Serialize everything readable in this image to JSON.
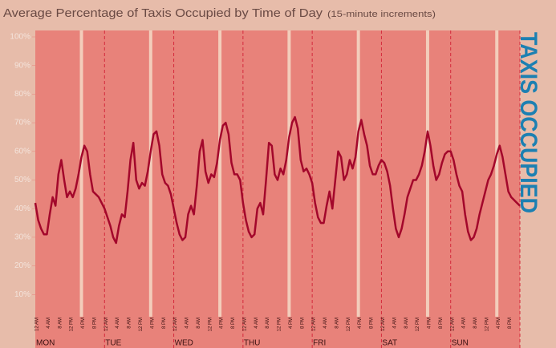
{
  "chart_data": {
    "type": "line",
    "title": "Average Percentage of Taxis Occupied by Time of Day",
    "subtitle": "(15-minute increments)",
    "side_label": "TAXIS OCCUPIED",
    "color": "#a3072b",
    "x": [
      0,
      1,
      2,
      3,
      4,
      5,
      6,
      7,
      8,
      9,
      10,
      11,
      12,
      13,
      14,
      15,
      16,
      17,
      18,
      19,
      20,
      21,
      22,
      23,
      24,
      25,
      26,
      27,
      28,
      29,
      30,
      31,
      32,
      33,
      34,
      35,
      36,
      37,
      38,
      39,
      40,
      41,
      42,
      43,
      44,
      45,
      46,
      47,
      48,
      49,
      50,
      51,
      52,
      53,
      54,
      55,
      56,
      57,
      58,
      59,
      60,
      61,
      62,
      63,
      64,
      65,
      66,
      67,
      68,
      69,
      70,
      71,
      72,
      73,
      74,
      75,
      76,
      77,
      78,
      79,
      80,
      81,
      82,
      83,
      84,
      85,
      86,
      87,
      88,
      89,
      90,
      91,
      92,
      93,
      94,
      95,
      96,
      97,
      98,
      99,
      100,
      101,
      102,
      103,
      104,
      105,
      106,
      107,
      108,
      109,
      110,
      111,
      112,
      113,
      114,
      115,
      116,
      117,
      118,
      119,
      120,
      121,
      122,
      123,
      124,
      125,
      126,
      127,
      128,
      129,
      130,
      131,
      132,
      133,
      134,
      135,
      136,
      137,
      138,
      139,
      140,
      141,
      142,
      143,
      144,
      145,
      146,
      147,
      148,
      149,
      150,
      151,
      152,
      153,
      154,
      155,
      156,
      157,
      158,
      159,
      160,
      161,
      162,
      163,
      164,
      165,
      166,
      167,
      168
    ],
    "values": [
      42,
      36,
      33,
      31,
      31,
      38,
      44,
      41,
      52,
      57,
      50,
      44,
      46,
      44,
      47,
      52,
      58,
      62,
      60,
      52,
      46,
      45,
      44,
      42,
      40,
      37,
      34,
      30,
      28,
      34,
      38,
      37,
      46,
      57,
      63,
      50,
      47,
      49,
      48,
      53,
      60,
      66,
      67,
      62,
      52,
      49,
      48,
      45,
      40,
      35,
      31,
      29,
      30,
      38,
      41,
      38,
      48,
      60,
      64,
      53,
      49,
      52,
      51,
      56,
      64,
      69,
      70,
      66,
      56,
      52,
      52,
      50,
      42,
      36,
      32,
      30,
      31,
      40,
      42,
      38,
      50,
      63,
      62,
      52,
      50,
      54,
      52,
      57,
      65,
      70,
      72,
      68,
      57,
      53,
      54,
      52,
      49,
      42,
      37,
      35,
      35,
      41,
      46,
      40,
      50,
      60,
      58,
      50,
      52,
      57,
      54,
      58,
      67,
      71,
      66,
      62,
      55,
      52,
      52,
      55,
      57,
      56,
      53,
      48,
      40,
      33,
      30,
      33,
      38,
      44,
      47,
      50,
      50,
      52,
      55,
      60,
      67,
      62,
      55,
      50,
      52,
      56,
      59,
      60,
      60,
      57,
      52,
      48,
      46,
      38,
      32,
      29,
      30,
      33,
      38,
      42,
      46,
      50,
      52,
      55,
      59,
      62,
      58,
      52,
      46,
      44,
      43,
      42,
      41
    ],
    "xlim": [
      0,
      168
    ],
    "ylim": [
      0,
      100
    ],
    "yticks": [
      {
        "value": 10,
        "label": "10%"
      },
      {
        "value": 20,
        "label": "20%"
      },
      {
        "value": 30,
        "label": "30%"
      },
      {
        "value": 40,
        "label": "40%"
      },
      {
        "value": 50,
        "label": "50%"
      },
      {
        "value": 60,
        "label": "60%"
      },
      {
        "value": 70,
        "label": "70%"
      },
      {
        "value": 80,
        "label": "80%"
      },
      {
        "value": 90,
        "label": "90%"
      },
      {
        "value": 100,
        "label": "100%"
      }
    ],
    "xticks": [
      {
        "value": 0,
        "label": "12 AM"
      },
      {
        "value": 4,
        "label": "4 AM"
      },
      {
        "value": 8,
        "label": "8 AM"
      },
      {
        "value": 12,
        "label": "12 PM"
      },
      {
        "value": 16,
        "label": "4 PM"
      },
      {
        "value": 20,
        "label": "8 PM"
      },
      {
        "value": 24,
        "label": "12 AM"
      },
      {
        "value": 28,
        "label": "4 AM"
      },
      {
        "value": 32,
        "label": "8 AM"
      },
      {
        "value": 36,
        "label": "12 PM"
      },
      {
        "value": 40,
        "label": "4 PM"
      },
      {
        "value": 44,
        "label": "8 PM"
      },
      {
        "value": 48,
        "label": "12 AM"
      },
      {
        "value": 52,
        "label": "4 AM"
      },
      {
        "value": 56,
        "label": "8 AM"
      },
      {
        "value": 60,
        "label": "12 PM"
      },
      {
        "value": 64,
        "label": "4 PM"
      },
      {
        "value": 68,
        "label": "8 PM"
      },
      {
        "value": 72,
        "label": "12 AM"
      },
      {
        "value": 76,
        "label": "4 AM"
      },
      {
        "value": 80,
        "label": "8 AM"
      },
      {
        "value": 84,
        "label": "12 PM"
      },
      {
        "value": 88,
        "label": "4 PM"
      },
      {
        "value": 92,
        "label": "8 PM"
      },
      {
        "value": 96,
        "label": "12 AM"
      },
      {
        "value": 100,
        "label": "4 AM"
      },
      {
        "value": 104,
        "label": "8 AM"
      },
      {
        "value": 108,
        "label": "12 PM"
      },
      {
        "value": 112,
        "label": "4 PM"
      },
      {
        "value": 116,
        "label": "8 PM"
      },
      {
        "value": 120,
        "label": "12 AM"
      },
      {
        "value": 124,
        "label": "4 AM"
      },
      {
        "value": 128,
        "label": "8 AM"
      },
      {
        "value": 132,
        "label": "12 PM"
      },
      {
        "value": 136,
        "label": "4 PM"
      },
      {
        "value": 140,
        "label": "8 PM"
      },
      {
        "value": 144,
        "label": "12 AM"
      },
      {
        "value": 148,
        "label": "4 AM"
      },
      {
        "value": 152,
        "label": "8 AM"
      },
      {
        "value": 156,
        "label": "12 PM"
      },
      {
        "value": 160,
        "label": "4 PM"
      },
      {
        "value": 164,
        "label": "8 PM"
      }
    ],
    "days": [
      "MON",
      "TUE",
      "WED",
      "THU",
      "FRI",
      "SAT",
      "SUN"
    ]
  }
}
